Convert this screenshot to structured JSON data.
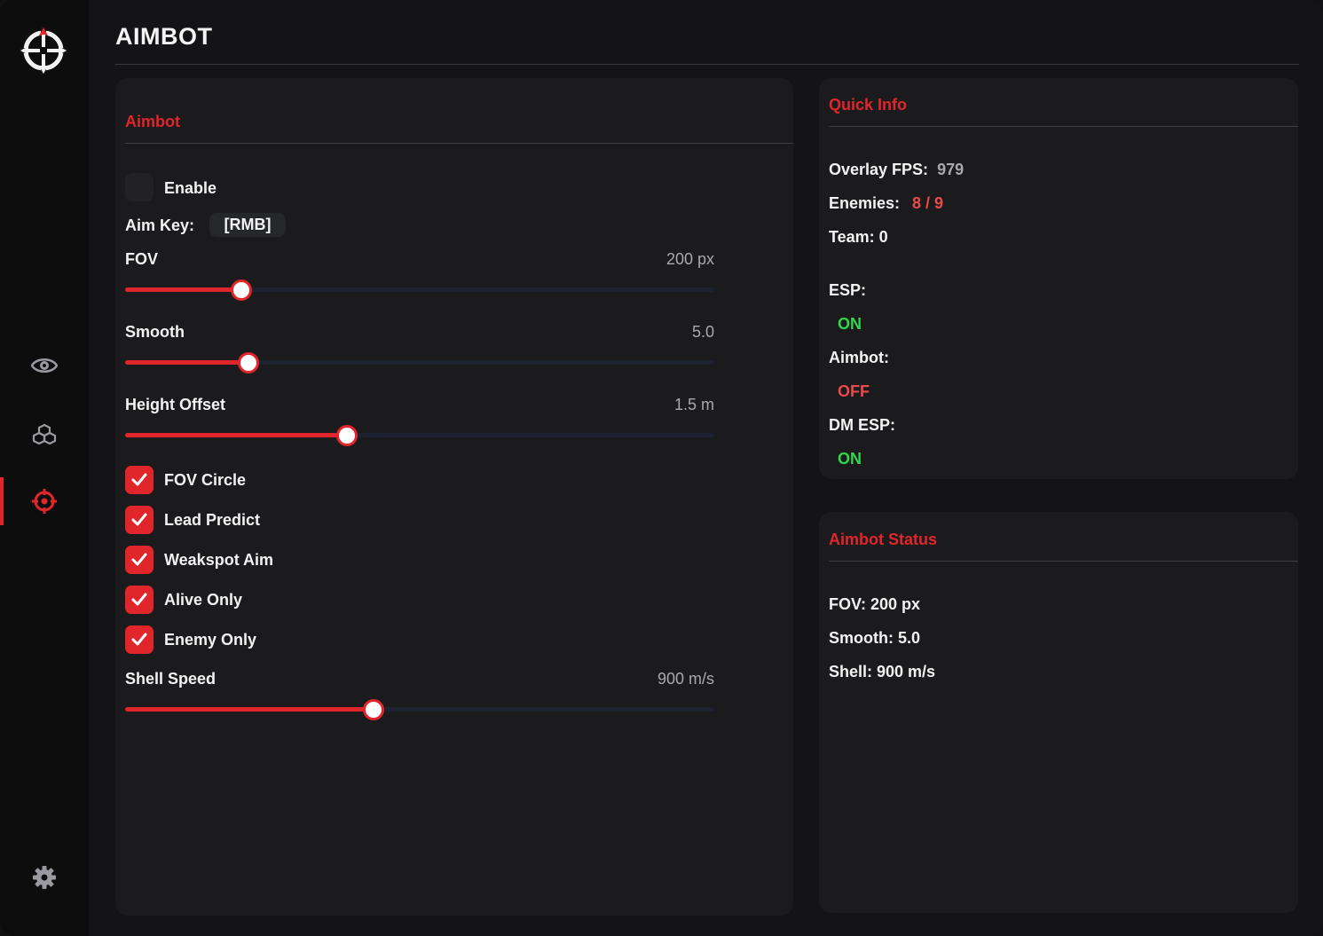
{
  "page_title": "AIMBOT",
  "sidebar": {
    "items": [
      {
        "name": "eye-icon",
        "active": false
      },
      {
        "name": "cubes-icon",
        "active": false
      },
      {
        "name": "crosshair-icon",
        "active": true
      },
      {
        "name": "gear-icon",
        "active": false
      }
    ],
    "accent_color": "#e0262b"
  },
  "aimbot_panel": {
    "title": "Aimbot",
    "enable_label": "Enable",
    "enable_checked": false,
    "aim_key_label": "Aim Key:",
    "aim_key_value": "[RMB]",
    "sliders": [
      {
        "label": "FOV",
        "value_text": "200 px",
        "fraction": 0.198
      },
      {
        "label": "Smooth",
        "value_text": "5.0",
        "fraction": 0.21
      },
      {
        "label": "Height Offset",
        "value_text": "1.5 m",
        "fraction": 0.376
      }
    ],
    "checkboxes": [
      {
        "label": "FOV Circle",
        "checked": true
      },
      {
        "label": "Lead Predict",
        "checked": true
      },
      {
        "label": "Weakspot Aim",
        "checked": true
      },
      {
        "label": "Alive Only",
        "checked": true
      },
      {
        "label": "Enemy Only",
        "checked": true
      }
    ],
    "shell_slider": {
      "label": "Shell Speed",
      "value_text": "900 m/s",
      "fraction": 0.422
    }
  },
  "quick_info": {
    "title": "Quick Info",
    "overlay_fps_label": "Overlay FPS:",
    "overlay_fps_value": "979",
    "enemies_label": "Enemies:",
    "enemies_value": "8 / 9",
    "team_text": "Team: 0",
    "esp_label": "ESP:",
    "esp_status": "ON",
    "aimbot_label": "Aimbot:",
    "aimbot_status": "OFF",
    "dm_esp_label": "DM ESP:",
    "dm_esp_status": "ON"
  },
  "aimbot_status": {
    "title": "Aimbot Status",
    "fov_text": "FOV: 200 px",
    "smooth_text": "Smooth: 5.0",
    "shell_text": "Shell: 900 m/s"
  }
}
